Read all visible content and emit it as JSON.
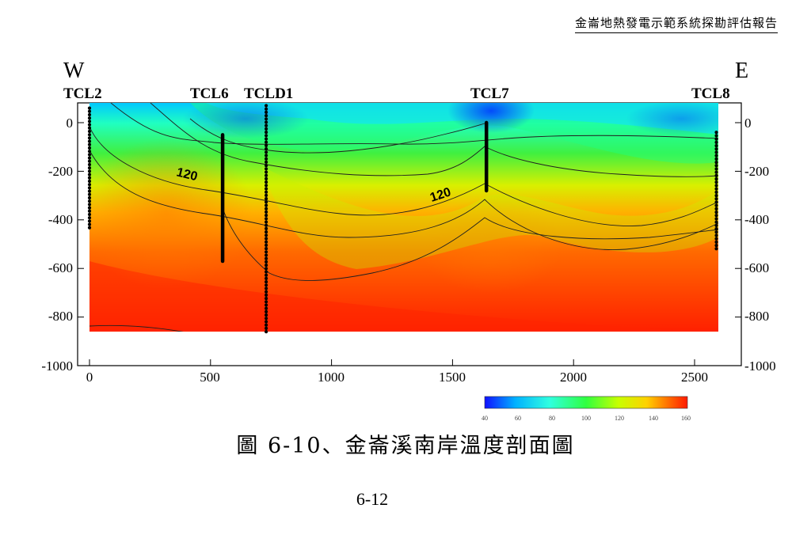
{
  "header": {
    "title": "金崙地熱發電示範系統探勘評估報告"
  },
  "figure": {
    "west_label": "W",
    "east_label": "E",
    "wells": [
      {
        "name": "TCL2",
        "x": 0,
        "top": 60,
        "bottom": -440,
        "style": "dotted"
      },
      {
        "name": "TCL6",
        "x": 550,
        "top": -50,
        "bottom": -570,
        "style": "solid"
      },
      {
        "name": "TCLD1",
        "x": 730,
        "top": 70,
        "bottom": -870,
        "style": "dotted"
      },
      {
        "name": "TCL7",
        "x": 1640,
        "top": 0,
        "bottom": -280,
        "style": "solid"
      },
      {
        "name": "TCL8",
        "x": 2590,
        "top": -40,
        "bottom": -520,
        "style": "dotted"
      }
    ],
    "contour_labels": [
      "120",
      "120"
    ],
    "colorbar": {
      "ticks": [
        "40",
        "60",
        "80",
        "100",
        "120",
        "140",
        "160"
      ],
      "min": 40,
      "max": 160,
      "colors": [
        "#1010ff",
        "#00b0ff",
        "#30ffe0",
        "#30ff40",
        "#c8ff00",
        "#ffd000",
        "#ff6000",
        "#ff1a00"
      ]
    }
  },
  "chart_data": {
    "type": "heatmap",
    "title": "",
    "xlabel": "",
    "ylabel": "",
    "xlim": [
      0,
      2600
    ],
    "ylim": [
      -1000,
      100
    ],
    "x_ticks": [
      "0",
      "500",
      "1000",
      "1500",
      "2000",
      "2500"
    ],
    "y_ticks_left": [
      "0",
      "-200",
      "-400",
      "-600",
      "-800",
      "-1000"
    ],
    "y_ticks_right": [
      "0",
      "-200",
      "-400",
      "-600",
      "-800",
      "-1000"
    ],
    "colorbar_range": [
      40,
      160
    ],
    "contour_interval": 20,
    "labeled_contours": [
      {
        "level": 120,
        "x": 430,
        "y": -200
      },
      {
        "level": 120,
        "x": 1460,
        "y": -285
      }
    ]
  },
  "caption": "圖 6-10、金崙溪南岸溫度剖面圖",
  "page_number": "6-12"
}
